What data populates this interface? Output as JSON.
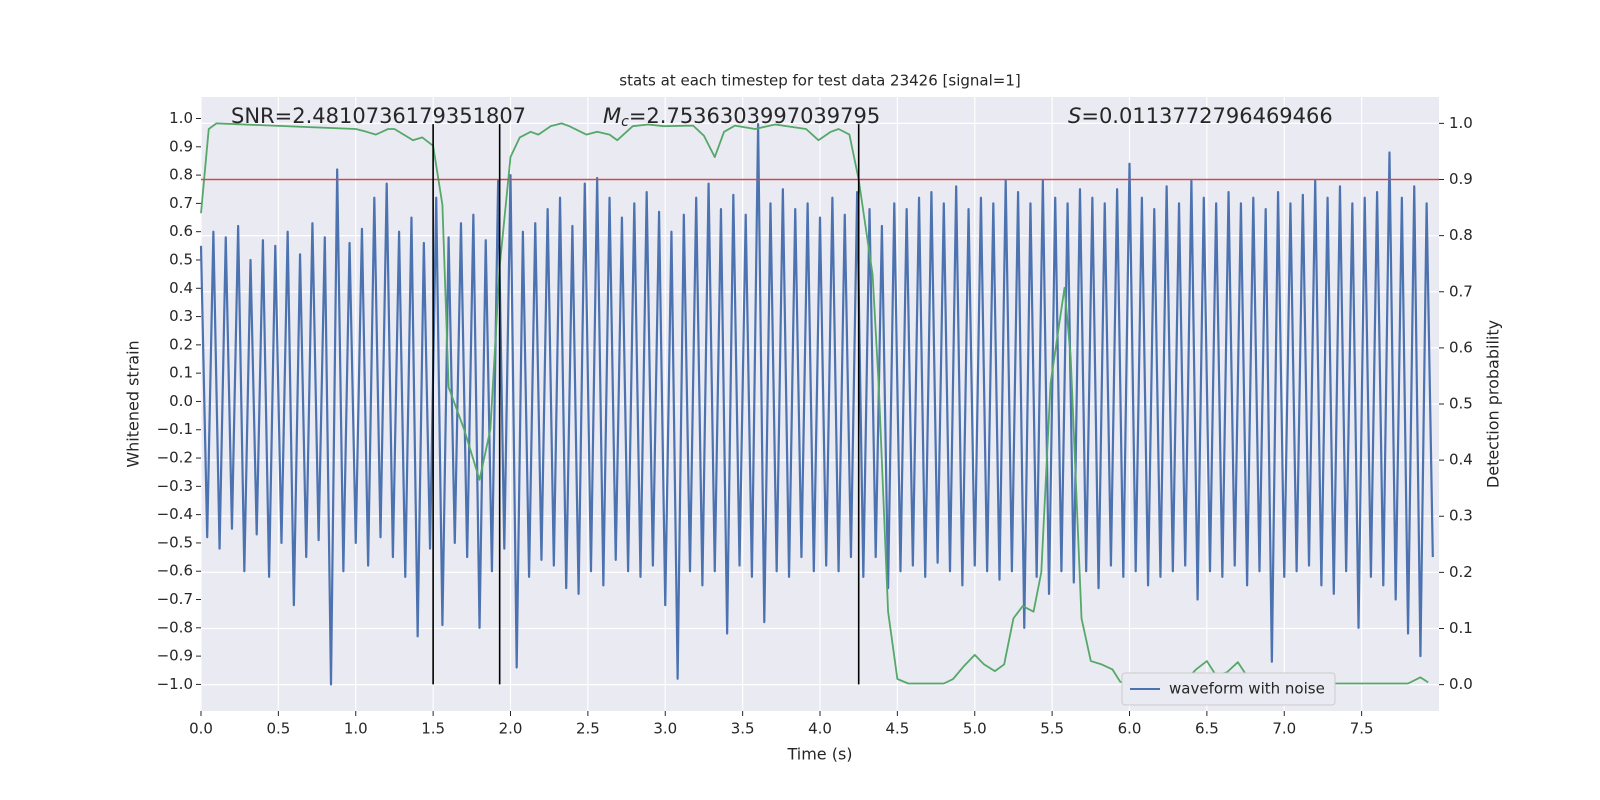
{
  "chart_data": {
    "type": "line",
    "title": "stats at each timestep for test data 23426 [signal=1]",
    "xlabel": "Time (s)",
    "ylabel": "Whitened strain",
    "y2label": "Detection probability",
    "xlim": [
      0,
      8
    ],
    "ylim": [
      -1.094,
      1.076
    ],
    "y2lim": [
      -0.047,
      1.047
    ],
    "xticks": [
      {
        "value": 0,
        "label": "0.0"
      },
      {
        "value": 0.5,
        "label": "0.5"
      },
      {
        "value": 1,
        "label": "1.0"
      },
      {
        "value": 1.5,
        "label": "1.5"
      },
      {
        "value": 2,
        "label": "2.0"
      },
      {
        "value": 2.5,
        "label": "2.5"
      },
      {
        "value": 3,
        "label": "3.0"
      },
      {
        "value": 3.5,
        "label": "3.5"
      },
      {
        "value": 4,
        "label": "4.0"
      },
      {
        "value": 4.5,
        "label": "4.5"
      },
      {
        "value": 5,
        "label": "5.0"
      },
      {
        "value": 5.5,
        "label": "5.5"
      },
      {
        "value": 6,
        "label": "6.0"
      },
      {
        "value": 6.5,
        "label": "6.5"
      },
      {
        "value": 7,
        "label": "7.0"
      },
      {
        "value": 7.5,
        "label": "7.5"
      }
    ],
    "yticks": [
      {
        "value": -1,
        "label": "−1.0"
      },
      {
        "value": -0.9,
        "label": "−0.9"
      },
      {
        "value": -0.8,
        "label": "−0.8"
      },
      {
        "value": -0.7,
        "label": "−0.7"
      },
      {
        "value": -0.6,
        "label": "−0.6"
      },
      {
        "value": -0.5,
        "label": "−0.5"
      },
      {
        "value": -0.4,
        "label": "−0.4"
      },
      {
        "value": -0.3,
        "label": "−0.3"
      },
      {
        "value": -0.2,
        "label": "−0.2"
      },
      {
        "value": -0.1,
        "label": "−0.1"
      },
      {
        "value": 0,
        "label": "0.0"
      },
      {
        "value": 0.1,
        "label": "0.1"
      },
      {
        "value": 0.2,
        "label": "0.2"
      },
      {
        "value": 0.3,
        "label": "0.3"
      },
      {
        "value": 0.4,
        "label": "0.4"
      },
      {
        "value": 0.5,
        "label": "0.5"
      },
      {
        "value": 0.6,
        "label": "0.6"
      },
      {
        "value": 0.7,
        "label": "0.7"
      },
      {
        "value": 0.8,
        "label": "0.8"
      },
      {
        "value": 0.9,
        "label": "0.9"
      },
      {
        "value": 1,
        "label": "1.0"
      }
    ],
    "y2ticks": [
      {
        "value": 0,
        "label": "0.0"
      },
      {
        "value": 0.1,
        "label": "0.1"
      },
      {
        "value": 0.2,
        "label": "0.2"
      },
      {
        "value": 0.3,
        "label": "0.3"
      },
      {
        "value": 0.4,
        "label": "0.4"
      },
      {
        "value": 0.5,
        "label": "0.5"
      },
      {
        "value": 0.6,
        "label": "0.6"
      },
      {
        "value": 0.7,
        "label": "0.7"
      },
      {
        "value": 0.8,
        "label": "0.8"
      },
      {
        "value": 0.9,
        "label": "0.9"
      },
      {
        "value": 1,
        "label": "1.0"
      }
    ],
    "grid": true,
    "legend": "lower right",
    "series": [
      {
        "name": "waveform with noise",
        "color": "#4c72b0",
        "axis": "y",
        "x": [
          0,
          0.04,
          0.08,
          0.12,
          0.16,
          0.2,
          0.24,
          0.28,
          0.32,
          0.36,
          0.4,
          0.44,
          0.48,
          0.52,
          0.56,
          0.6,
          0.64,
          0.68,
          0.72,
          0.76,
          0.8,
          0.84,
          0.88,
          0.92,
          0.96,
          1,
          1.04,
          1.08,
          1.12,
          1.16,
          1.2,
          1.24,
          1.28,
          1.32,
          1.36,
          1.4,
          1.44,
          1.48,
          1.52,
          1.56,
          1.6,
          1.64,
          1.68,
          1.72,
          1.76,
          1.8,
          1.84,
          1.88,
          1.92,
          1.96,
          2,
          2.04,
          2.08,
          2.12,
          2.16,
          2.2,
          2.24,
          2.28,
          2.32,
          2.36,
          2.4,
          2.44,
          2.48,
          2.52,
          2.56,
          2.6,
          2.64,
          2.68,
          2.72,
          2.76,
          2.8,
          2.84,
          2.88,
          2.92,
          2.96,
          3,
          3.04,
          3.08,
          3.12,
          3.16,
          3.2,
          3.24,
          3.28,
          3.32,
          3.36,
          3.4,
          3.44,
          3.48,
          3.52,
          3.56,
          3.6,
          3.64,
          3.68,
          3.72,
          3.76,
          3.8,
          3.84,
          3.88,
          3.92,
          3.96,
          4,
          4.04,
          4.08,
          4.12,
          4.16,
          4.2,
          4.24,
          4.28,
          4.32,
          4.36,
          4.4,
          4.44,
          4.48,
          4.52,
          4.56,
          4.6,
          4.64,
          4.68,
          4.72,
          4.76,
          4.8,
          4.84,
          4.88,
          4.92,
          4.96,
          5,
          5.04,
          5.08,
          5.12,
          5.16,
          5.2,
          5.24,
          5.28,
          5.32,
          5.36,
          5.4,
          5.44,
          5.48,
          5.52,
          5.56,
          5.6,
          5.64,
          5.68,
          5.72,
          5.76,
          5.8,
          5.84,
          5.88,
          5.92,
          5.96,
          6,
          6.04,
          6.08,
          6.12,
          6.16,
          6.2,
          6.24,
          6.28,
          6.32,
          6.36,
          6.4,
          6.44,
          6.48,
          6.52,
          6.56,
          6.6,
          6.64,
          6.68,
          6.72,
          6.76,
          6.8,
          6.84,
          6.88,
          6.92,
          6.96,
          7,
          7.04,
          7.08,
          7.12,
          7.16,
          7.2,
          7.24,
          7.28,
          7.32,
          7.36,
          7.4,
          7.44,
          7.48,
          7.52,
          7.56,
          7.6,
          7.64,
          7.68,
          7.72,
          7.76,
          7.8,
          7.84,
          7.88,
          7.92,
          7.96
        ],
        "values": [
          0.55,
          -0.48,
          0.6,
          -0.52,
          0.58,
          -0.45,
          0.62,
          -0.6,
          0.5,
          -0.47,
          0.57,
          -0.62,
          0.55,
          -0.5,
          0.6,
          -0.72,
          0.52,
          -0.55,
          0.63,
          -0.49,
          0.58,
          -1.0,
          0.82,
          -0.6,
          0.56,
          -0.5,
          0.61,
          -0.58,
          0.72,
          -0.48,
          0.77,
          -0.55,
          0.6,
          -0.62,
          0.65,
          -0.83,
          0.56,
          -0.52,
          0.72,
          -0.79,
          0.58,
          -0.5,
          0.63,
          -0.55,
          0.66,
          -0.8,
          0.57,
          -0.6,
          0.78,
          -0.52,
          0.8,
          -0.94,
          0.6,
          -0.62,
          0.63,
          -0.56,
          0.68,
          -0.58,
          0.72,
          -0.66,
          0.62,
          -0.68,
          0.77,
          -0.6,
          0.79,
          -0.65,
          0.72,
          -0.56,
          0.65,
          -0.6,
          0.7,
          -0.62,
          0.74,
          -0.58,
          0.67,
          -0.72,
          0.6,
          -0.98,
          0.66,
          -0.6,
          0.72,
          -0.65,
          0.77,
          -0.6,
          0.68,
          -0.82,
          0.73,
          -0.58,
          0.66,
          -0.62,
          0.98,
          -0.78,
          0.7,
          -0.6,
          0.75,
          -0.62,
          0.68,
          -0.55,
          0.7,
          -0.6,
          0.65,
          -0.58,
          0.72,
          -0.6,
          0.66,
          -0.55,
          0.74,
          -0.62,
          0.68,
          -0.55,
          0.62,
          -0.66,
          0.7,
          -0.6,
          0.68,
          -0.58,
          0.72,
          -0.62,
          0.74,
          -0.57,
          0.7,
          -0.6,
          0.76,
          -0.65,
          0.68,
          -0.58,
          0.72,
          -0.6,
          0.7,
          -0.63,
          0.78,
          -0.6,
          0.74,
          -0.8,
          0.7,
          -0.62,
          0.78,
          -0.68,
          0.72,
          -0.6,
          0.7,
          -0.64,
          0.75,
          -0.6,
          0.72,
          -0.66,
          0.7,
          -0.58,
          0.75,
          -0.62,
          0.84,
          -0.6,
          0.72,
          -0.65,
          0.68,
          -0.62,
          0.76,
          -0.6,
          0.7,
          -0.58,
          0.78,
          -0.7,
          0.72,
          -0.6,
          0.7,
          -0.62,
          0.74,
          -0.58,
          0.7,
          -0.65,
          0.72,
          -0.6,
          0.68,
          -0.92,
          0.74,
          -0.62,
          0.7,
          -0.6,
          0.73,
          -0.58,
          0.78,
          -0.65,
          0.72,
          -0.68,
          0.76,
          -0.6,
          0.7,
          -0.8,
          0.72,
          -0.62,
          0.74,
          -0.65,
          0.88,
          -0.7,
          0.72,
          -0.82,
          0.76,
          -0.9,
          0.7,
          -0.55
        ]
      },
      {
        "color": "#55a868",
        "axis": "y2",
        "x": [
          0,
          0.05,
          0.1,
          1.0,
          1.07,
          1.13,
          1.21,
          1.25,
          1.37,
          1.43,
          1.5,
          1.56,
          1.6,
          1.7,
          1.8,
          1.87,
          1.93,
          2.0,
          2.06,
          2.13,
          2.18,
          2.26,
          2.33,
          2.38,
          2.49,
          2.56,
          2.64,
          2.69,
          2.79,
          2.89,
          2.99,
          3.18,
          3.25,
          3.32,
          3.38,
          3.45,
          3.58,
          3.71,
          3.91,
          3.99,
          4.07,
          4.12,
          4.19,
          4.25,
          4.34,
          4.38,
          4.44,
          4.5,
          4.57,
          4.8,
          4.86,
          4.93,
          5.0,
          5.06,
          5.13,
          5.19,
          5.25,
          5.31,
          5.38,
          5.43,
          5.49,
          5.58,
          5.62,
          5.69,
          5.75,
          5.82,
          5.89,
          5.94,
          6.02,
          6.15,
          6.22,
          6.35,
          6.43,
          6.5,
          6.56,
          6.63,
          6.7,
          6.76,
          6.82,
          7.14,
          7.8,
          7.88,
          7.93
        ],
        "values": [
          0.84,
          0.99,
          1.0,
          0.99,
          0.985,
          0.98,
          0.99,
          0.99,
          0.97,
          0.975,
          0.96,
          0.855,
          0.53,
          0.455,
          0.365,
          0.455,
          0.745,
          0.94,
          0.975,
          0.985,
          0.98,
          0.995,
          1.0,
          0.995,
          0.98,
          0.985,
          0.98,
          0.97,
          0.995,
          0.998,
          0.995,
          0.996,
          0.978,
          0.94,
          0.985,
          0.996,
          0.99,
          0.998,
          0.99,
          0.97,
          0.985,
          0.99,
          0.98,
          0.9,
          0.73,
          0.53,
          0.13,
          0.01,
          0.002,
          0.002,
          0.01,
          0.033,
          0.053,
          0.036,
          0.024,
          0.036,
          0.118,
          0.14,
          0.13,
          0.2,
          0.537,
          0.707,
          0.583,
          0.118,
          0.042,
          0.036,
          0.027,
          0.005,
          0.002,
          0.002,
          0.009,
          0.004,
          0.027,
          0.042,
          0.016,
          0.022,
          0.04,
          0.015,
          0.004,
          0.002,
          0.002,
          0.013,
          0.004
        ]
      }
    ],
    "hline": {
      "y": 0.9,
      "axis": "y2",
      "color": "#c44e52"
    },
    "vlines": {
      "x": [
        1.5,
        1.93,
        4.25
      ],
      "ymin": -1.0,
      "ymax": 0.98,
      "color": "#000000"
    },
    "annotations": [
      {
        "text": "SNR=2.4810736179351807"
      },
      {
        "symbol": "M",
        "subscript": "c",
        "text": "=2.7536303997039795"
      },
      {
        "symbol": "S",
        "text": "=0.011377279646946​6"
      }
    ]
  }
}
